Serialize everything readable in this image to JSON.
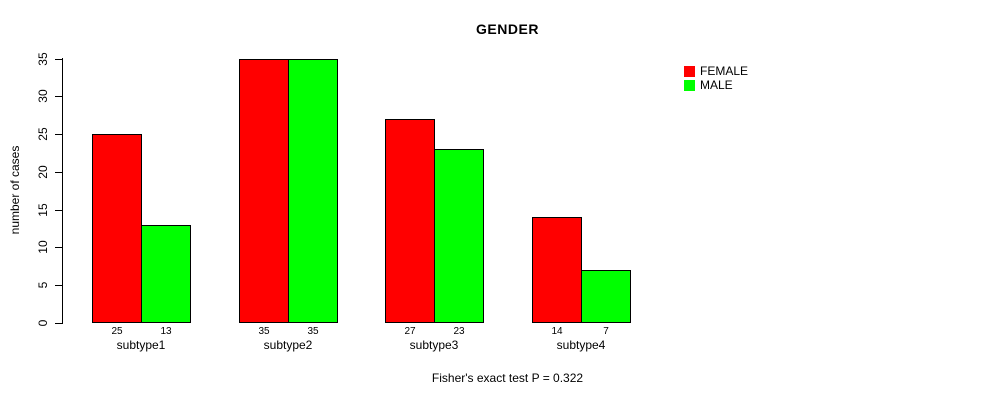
{
  "title": "GENDER",
  "ylabel": "number of cases",
  "footnote": "Fisher's exact test P = 0.322",
  "colors": {
    "female": "#FF0000",
    "male": "#00FF00",
    "axis": "#000000",
    "background": "#FFFFFF"
  },
  "legend": {
    "items": [
      {
        "label": "FEMALE",
        "color": "#FF0000"
      },
      {
        "label": "MALE",
        "color": "#00FF00"
      }
    ]
  },
  "chart_data": {
    "type": "bar",
    "title": "GENDER",
    "categories": [
      "subtype1",
      "subtype2",
      "subtype3",
      "subtype4"
    ],
    "series": [
      {
        "name": "FEMALE",
        "color": "#FF0000",
        "values": [
          25,
          35,
          27,
          14
        ]
      },
      {
        "name": "MALE",
        "color": "#00FF00",
        "values": [
          13,
          35,
          23,
          7
        ]
      }
    ],
    "bar_value_labels": [
      [
        "25",
        "13"
      ],
      [
        "35",
        "35"
      ],
      [
        "27",
        "23"
      ],
      [
        "14",
        "7"
      ]
    ],
    "xlabel": "",
    "ylabel": "number of cases",
    "ylim": [
      0,
      35
    ],
    "yticks": [
      0,
      5,
      10,
      15,
      20,
      25,
      30,
      35
    ],
    "grid": false,
    "legend_position": "right",
    "annotation": "Fisher's exact test P = 0.322"
  }
}
